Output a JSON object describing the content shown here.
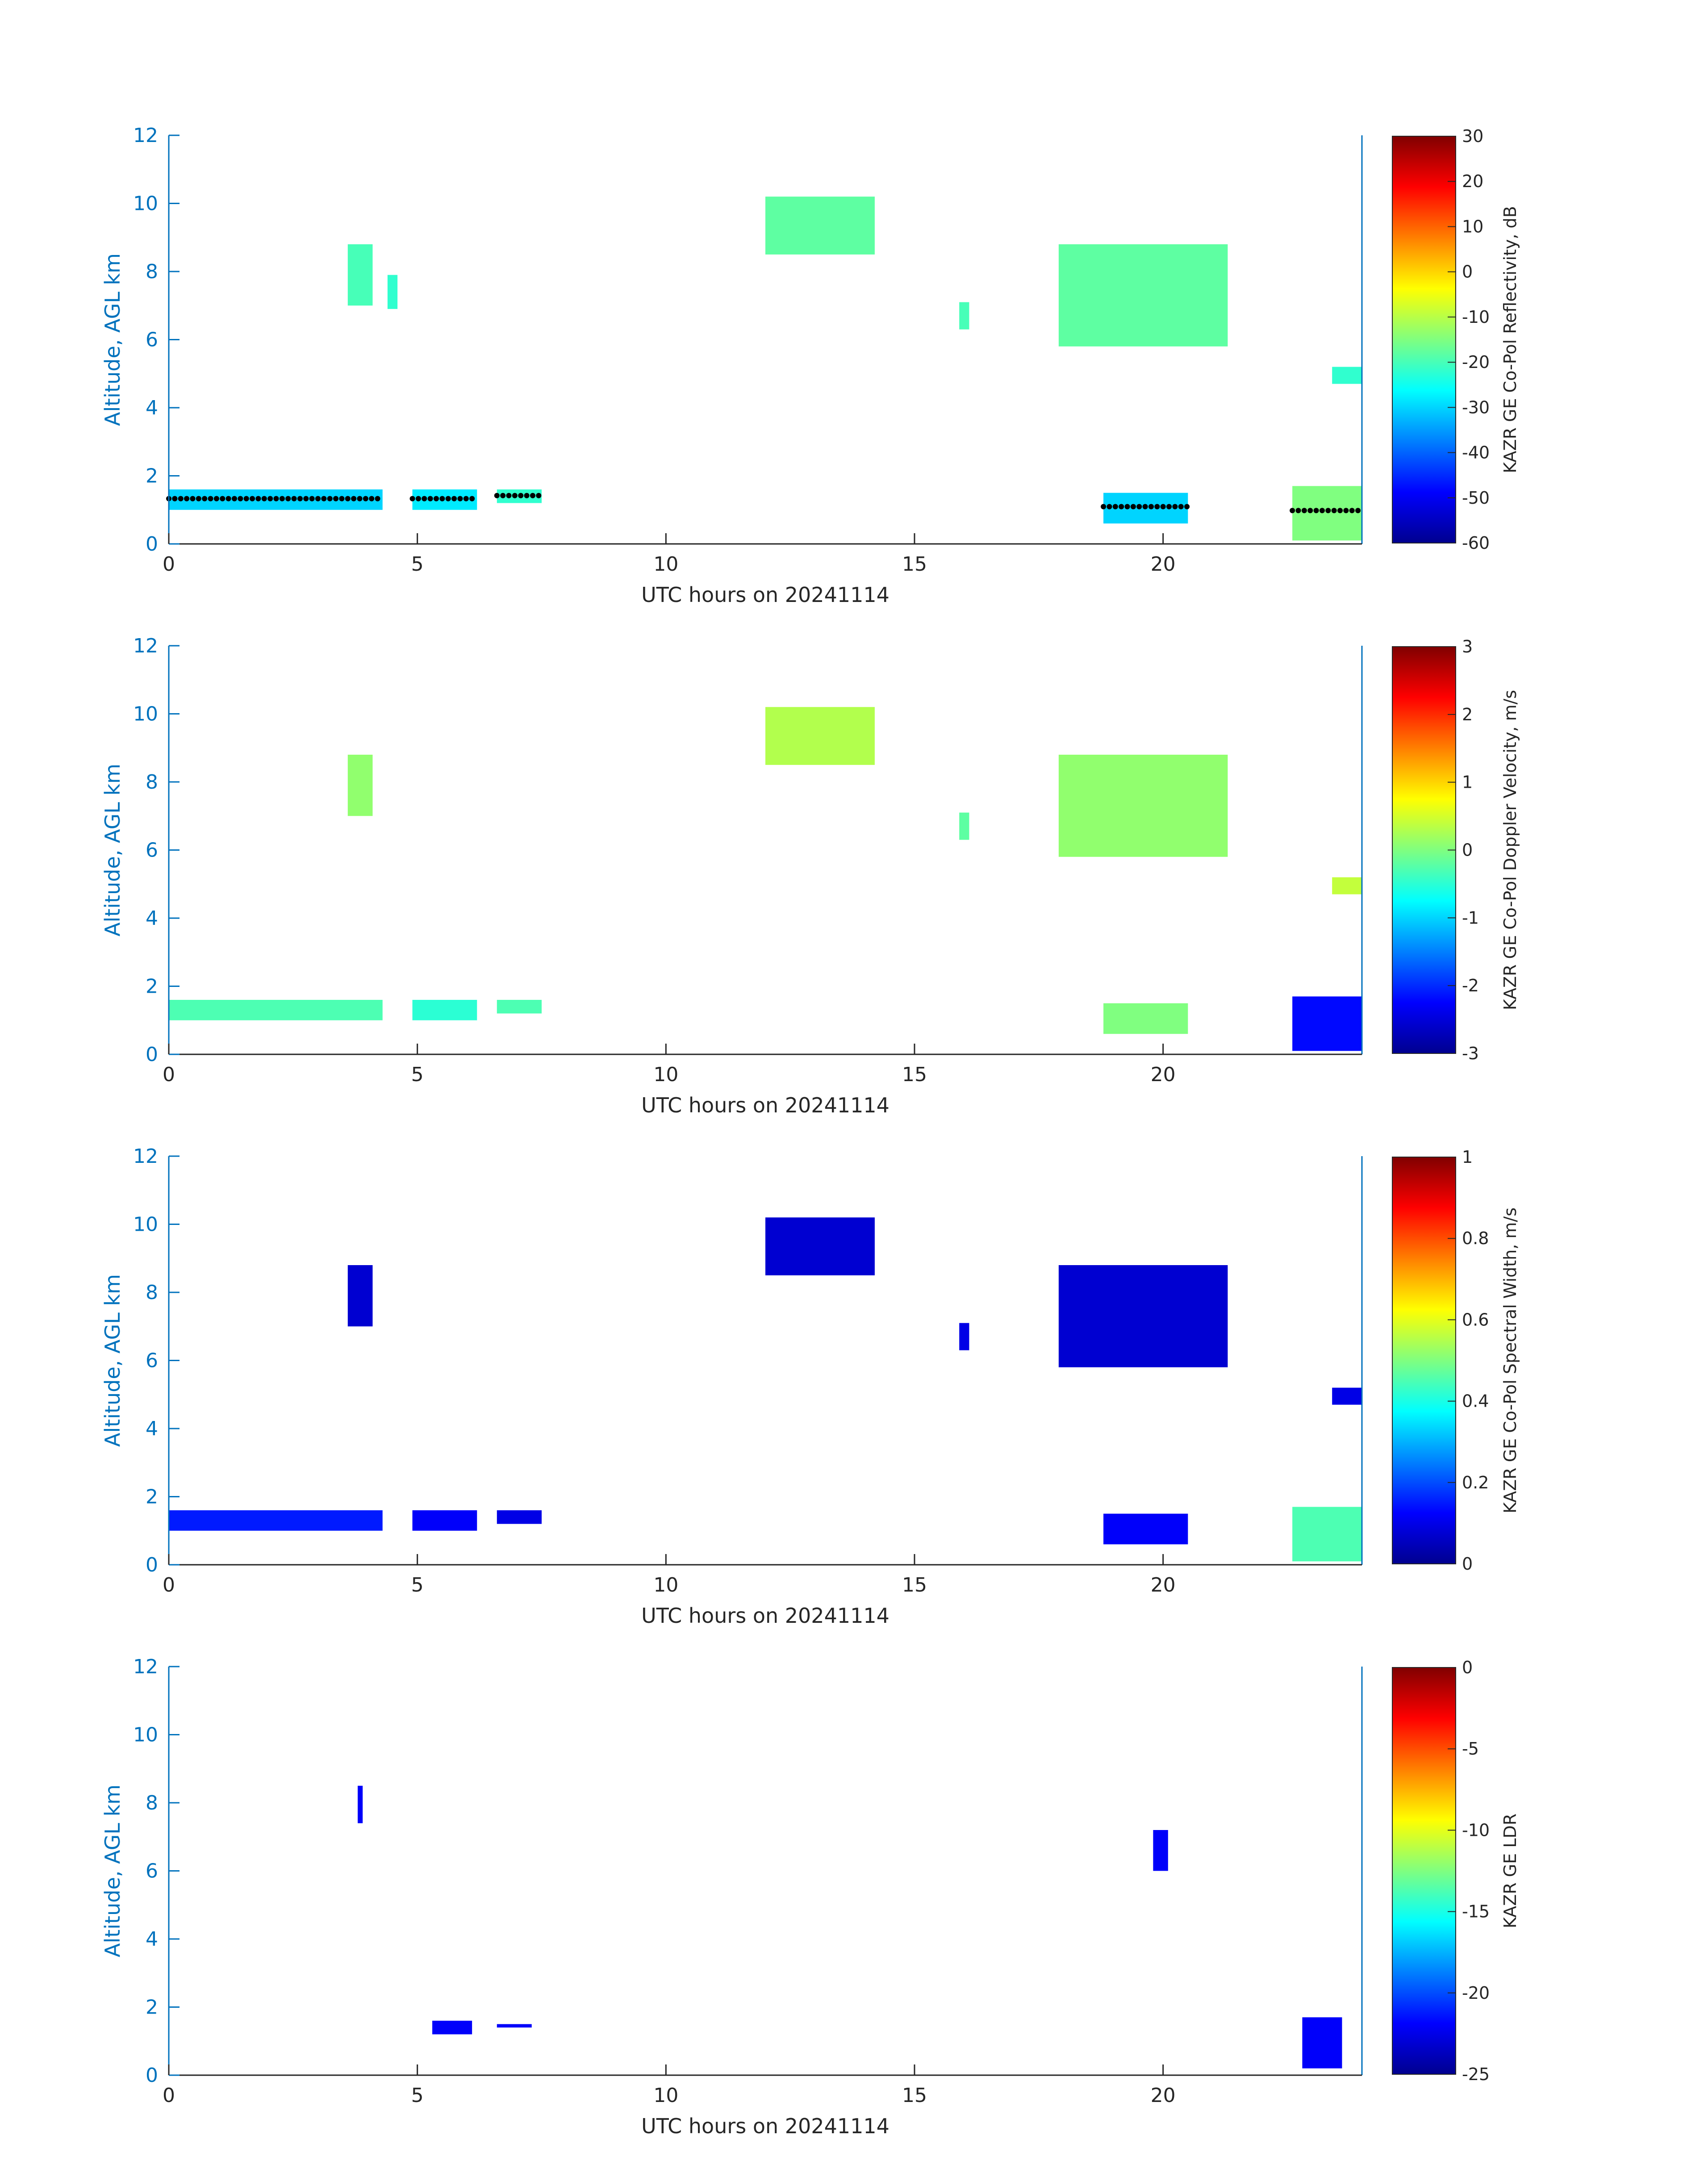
{
  "chart_data": [
    {
      "type": "heatmap",
      "title": "",
      "xlabel": "UTC hours on 20241114",
      "ylabel": "Altitude, AGL km",
      "xlim": [
        0,
        24
      ],
      "ylim": [
        0,
        12
      ],
      "x_ticks": [
        0,
        5,
        10,
        15,
        20
      ],
      "y_ticks": [
        0,
        2,
        4,
        6,
        8,
        10,
        12
      ],
      "colorbar": {
        "label": "KAZR GE Co-Pol Reflectivity, dB",
        "range": [
          -60,
          30
        ],
        "ticks": [
          -60,
          -50,
          -40,
          -30,
          -20,
          -10,
          0,
          10,
          20,
          30
        ]
      },
      "colormap": "jet",
      "overlay": "cloud base points (black)",
      "regions": [
        {
          "x": [
            0,
            4.3
          ],
          "y": [
            1.0,
            1.6
          ],
          "value": -30
        },
        {
          "x": [
            3.6,
            4.1
          ],
          "y": [
            7.0,
            8.8
          ],
          "value": -20
        },
        {
          "x": [
            4.4,
            4.6
          ],
          "y": [
            6.9,
            7.9
          ],
          "value": -22
        },
        {
          "x": [
            4.9,
            6.2
          ],
          "y": [
            1.0,
            1.6
          ],
          "value": -28
        },
        {
          "x": [
            6.6,
            7.5
          ],
          "y": [
            1.2,
            1.6
          ],
          "value": -22
        },
        {
          "x": [
            12.0,
            14.2
          ],
          "y": [
            8.5,
            10.2
          ],
          "value": -18
        },
        {
          "x": [
            15.9,
            16.1
          ],
          "y": [
            6.3,
            7.1
          ],
          "value": -20
        },
        {
          "x": [
            17.9,
            21.3
          ],
          "y": [
            5.8,
            8.8
          ],
          "value": -18
        },
        {
          "x": [
            18.8,
            20.5
          ],
          "y": [
            0.6,
            1.5
          ],
          "value": -30
        },
        {
          "x": [
            23.4,
            24.0
          ],
          "y": [
            4.7,
            5.2
          ],
          "value": -22
        },
        {
          "x": [
            22.6,
            24.0
          ],
          "y": [
            0.1,
            1.7
          ],
          "value": -15
        }
      ]
    },
    {
      "type": "heatmap",
      "title": "",
      "xlabel": "UTC hours on 20241114",
      "ylabel": "Altitude, AGL km",
      "xlim": [
        0,
        24
      ],
      "ylim": [
        0,
        12
      ],
      "x_ticks": [
        0,
        5,
        10,
        15,
        20
      ],
      "y_ticks": [
        0,
        2,
        4,
        6,
        8,
        10,
        12
      ],
      "colorbar": {
        "label": "KAZR GE Co-Pol Doppler Velocity, m/s",
        "range": [
          -3,
          3
        ],
        "ticks": [
          -3,
          -2,
          -1,
          0,
          1,
          2,
          3
        ]
      },
      "colormap": "jet",
      "regions": [
        {
          "x": [
            0,
            4.3
          ],
          "y": [
            1.0,
            1.6
          ],
          "value": -0.3
        },
        {
          "x": [
            3.6,
            4.1
          ],
          "y": [
            7.0,
            8.8
          ],
          "value": 0.1
        },
        {
          "x": [
            4.9,
            6.2
          ],
          "y": [
            1.0,
            1.6
          ],
          "value": -0.5
        },
        {
          "x": [
            6.6,
            7.5
          ],
          "y": [
            1.2,
            1.6
          ],
          "value": -0.3
        },
        {
          "x": [
            12.0,
            14.2
          ],
          "y": [
            8.5,
            10.2
          ],
          "value": 0.3
        },
        {
          "x": [
            15.9,
            16.1
          ],
          "y": [
            6.3,
            7.1
          ],
          "value": -0.2
        },
        {
          "x": [
            17.9,
            21.3
          ],
          "y": [
            5.8,
            8.8
          ],
          "value": 0.1
        },
        {
          "x": [
            18.8,
            20.5
          ],
          "y": [
            0.6,
            1.5
          ],
          "value": 0.0
        },
        {
          "x": [
            23.4,
            24.0
          ],
          "y": [
            4.7,
            5.2
          ],
          "value": 0.4
        },
        {
          "x": [
            22.6,
            24.0
          ],
          "y": [
            0.1,
            1.7
          ],
          "value": -2.2
        }
      ]
    },
    {
      "type": "heatmap",
      "title": "",
      "xlabel": "UTC hours on 20241114",
      "ylabel": "Altitude, AGL km",
      "xlim": [
        0,
        24
      ],
      "ylim": [
        0,
        12
      ],
      "x_ticks": [
        0,
        5,
        10,
        15,
        20
      ],
      "y_ticks": [
        0,
        2,
        4,
        6,
        8,
        10,
        12
      ],
      "colorbar": {
        "label": "KAZR GE Co-Pol Spectral Width, m/s",
        "range": [
          0,
          1
        ],
        "ticks": [
          0,
          0.2,
          0.4,
          0.6,
          0.8,
          1
        ]
      },
      "colormap": "jet",
      "regions": [
        {
          "x": [
            0,
            4.3
          ],
          "y": [
            1.0,
            1.6
          ],
          "value": 0.15
        },
        {
          "x": [
            3.6,
            4.1
          ],
          "y": [
            7.0,
            8.8
          ],
          "value": 0.08
        },
        {
          "x": [
            4.9,
            6.2
          ],
          "y": [
            1.0,
            1.6
          ],
          "value": 0.12
        },
        {
          "x": [
            6.6,
            7.5
          ],
          "y": [
            1.2,
            1.6
          ],
          "value": 0.1
        },
        {
          "x": [
            12.0,
            14.2
          ],
          "y": [
            8.5,
            10.2
          ],
          "value": 0.08
        },
        {
          "x": [
            15.9,
            16.1
          ],
          "y": [
            6.3,
            7.1
          ],
          "value": 0.1
        },
        {
          "x": [
            17.9,
            21.3
          ],
          "y": [
            5.8,
            8.8
          ],
          "value": 0.08
        },
        {
          "x": [
            18.8,
            20.5
          ],
          "y": [
            0.6,
            1.5
          ],
          "value": 0.12
        },
        {
          "x": [
            23.4,
            24.0
          ],
          "y": [
            4.7,
            5.2
          ],
          "value": 0.1
        },
        {
          "x": [
            22.6,
            24.0
          ],
          "y": [
            0.1,
            1.7
          ],
          "value": 0.45
        }
      ]
    },
    {
      "type": "heatmap",
      "title": "",
      "xlabel": "UTC hours on 20241114",
      "ylabel": "Altitude, AGL km",
      "xlim": [
        0,
        24
      ],
      "ylim": [
        0,
        12
      ],
      "x_ticks": [
        0,
        5,
        10,
        15,
        20
      ],
      "y_ticks": [
        0,
        2,
        4,
        6,
        8,
        10,
        12
      ],
      "colorbar": {
        "label": "KAZR GE LDR",
        "range": [
          -25,
          0
        ],
        "ticks": [
          -25,
          -20,
          -15,
          -10,
          -5,
          0
        ]
      },
      "colormap": "jet",
      "regions": [
        {
          "x": [
            3.8,
            3.9
          ],
          "y": [
            7.4,
            8.5
          ],
          "value": -22
        },
        {
          "x": [
            5.3,
            6.1
          ],
          "y": [
            1.2,
            1.6
          ],
          "value": -22
        },
        {
          "x": [
            6.6,
            7.3
          ],
          "y": [
            1.4,
            1.5
          ],
          "value": -22
        },
        {
          "x": [
            19.8,
            20.1
          ],
          "y": [
            6.0,
            7.2
          ],
          "value": -22
        },
        {
          "x": [
            22.8,
            23.6
          ],
          "y": [
            0.2,
            1.7
          ],
          "value": -22
        }
      ]
    }
  ]
}
